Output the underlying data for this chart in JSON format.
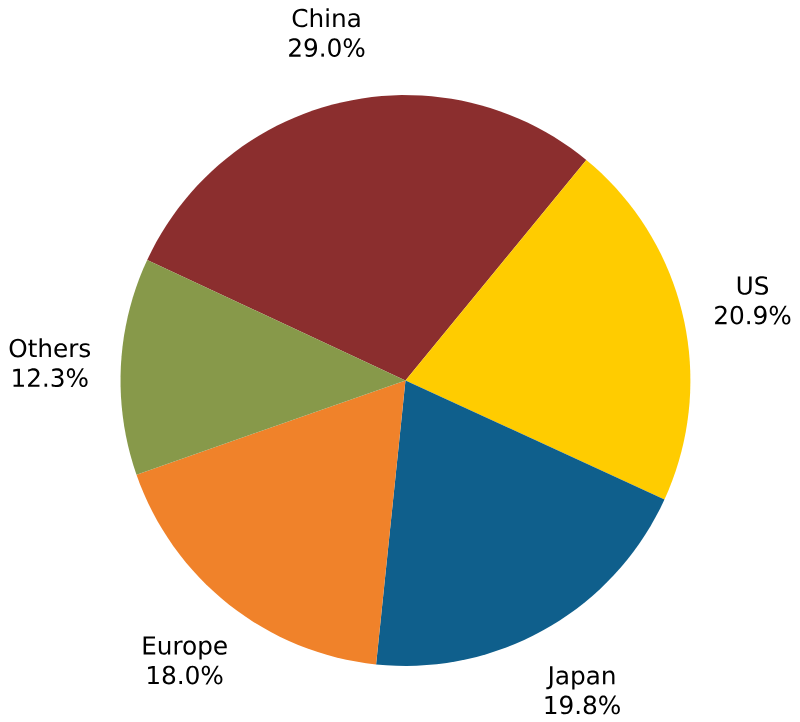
{
  "chart_data": {
    "type": "pie",
    "categories": [
      "China",
      "US",
      "Japan",
      "Europe",
      "Others"
    ],
    "values": [
      29.0,
      20.9,
      19.8,
      18.0,
      12.3
    ],
    "colors": [
      "#8b2e2e",
      "#ffcc00",
      "#0f5f8c",
      "#f0822a",
      "#87994a"
    ],
    "value_labels": [
      "29.0%",
      "20.9%",
      "19.8%",
      "18.0%",
      "12.3%"
    ]
  }
}
